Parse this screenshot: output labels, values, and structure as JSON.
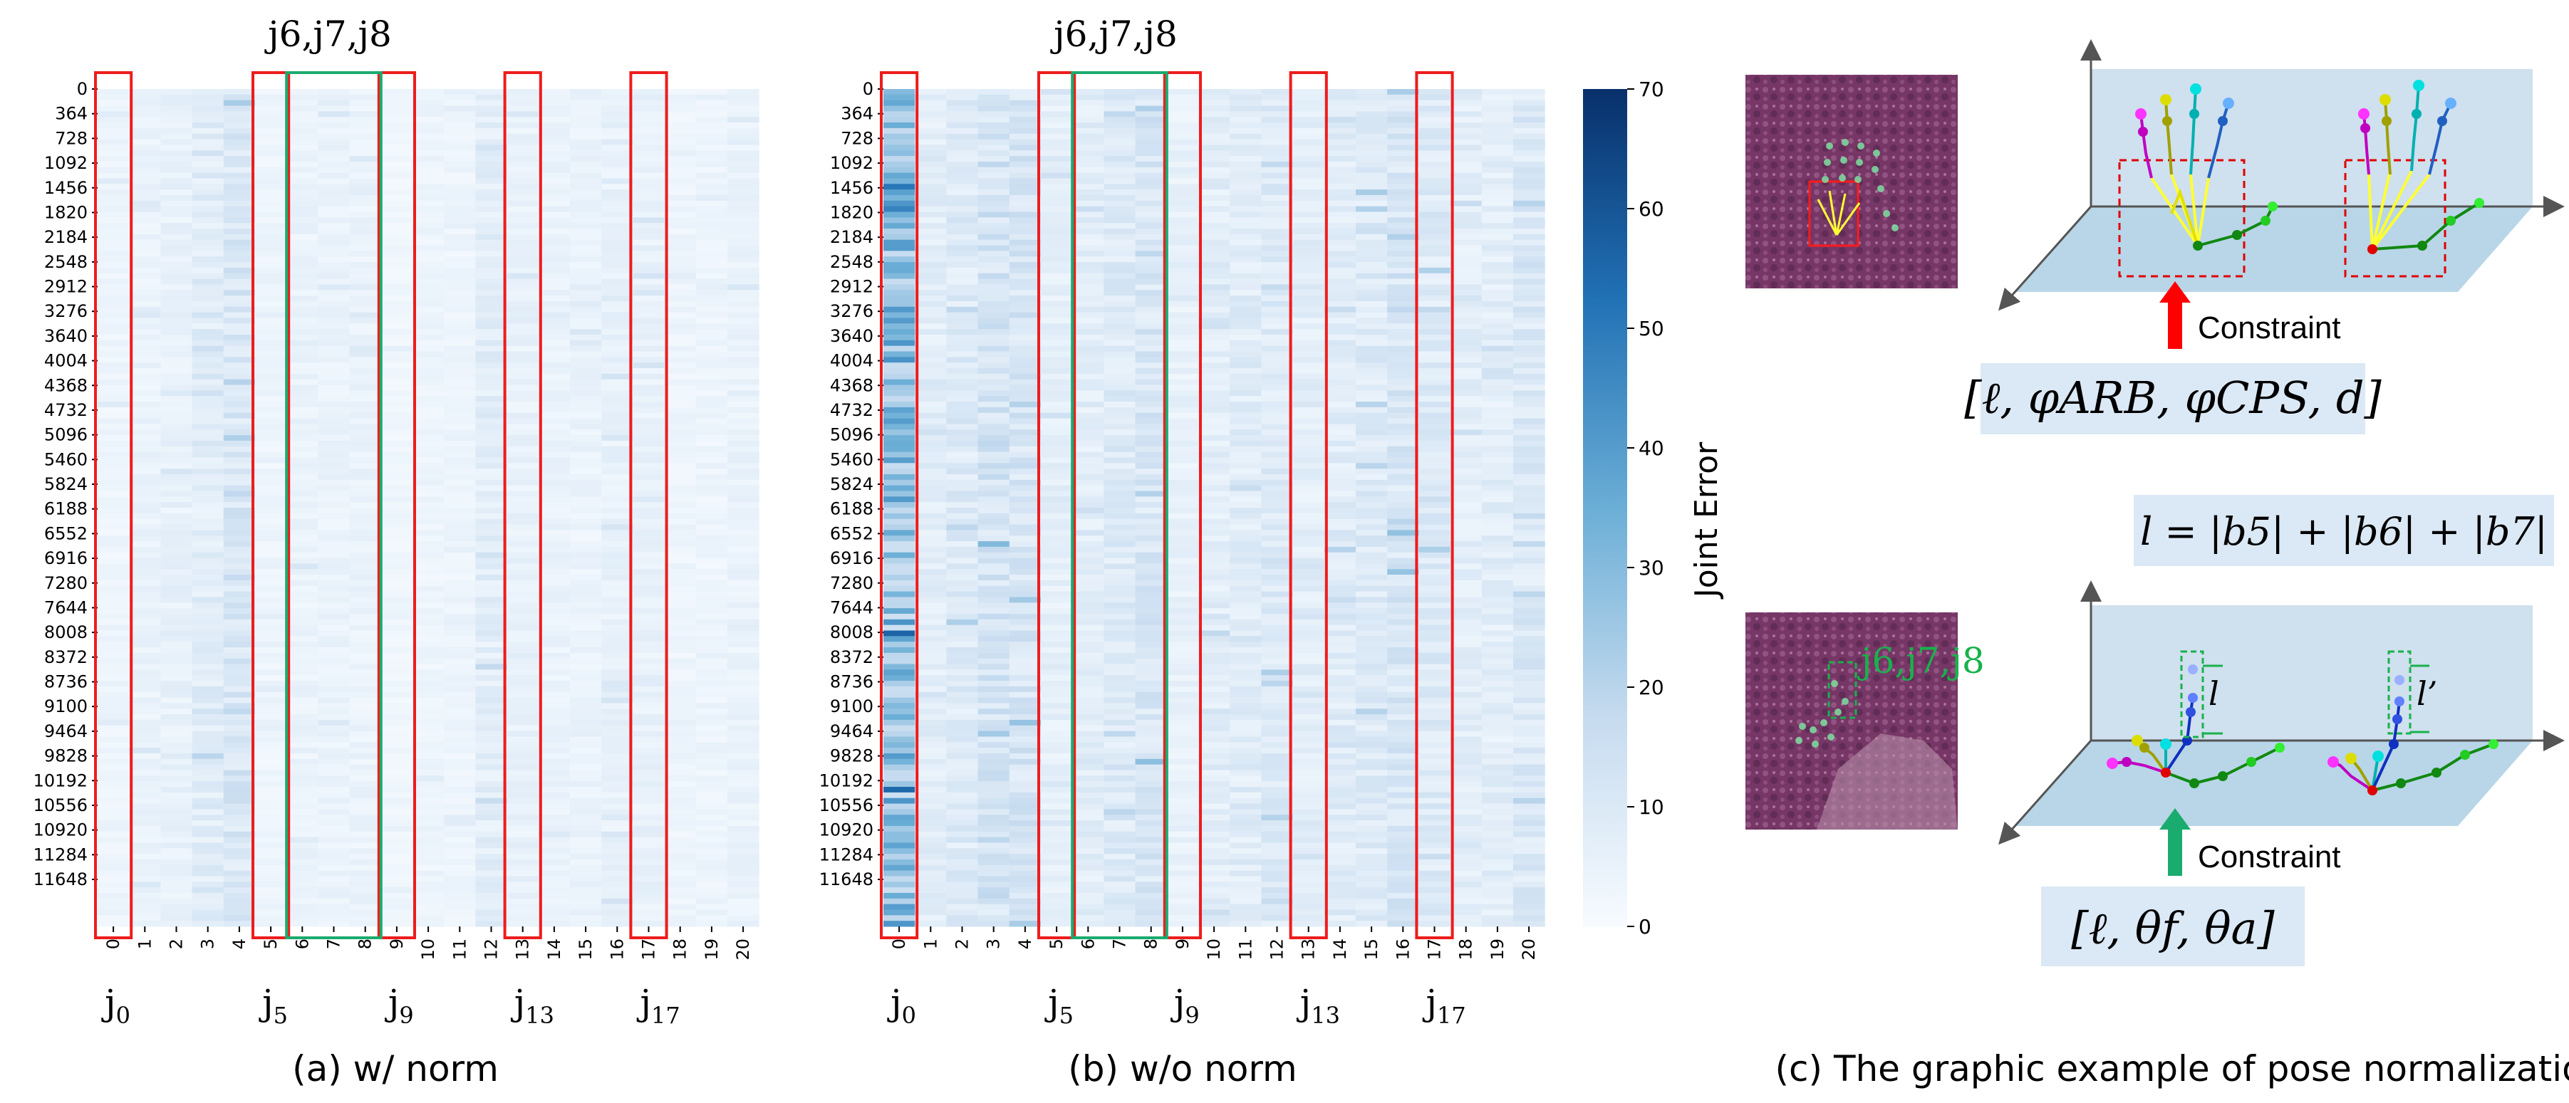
{
  "chart_data": [
    {
      "type": "heatmap",
      "title": "",
      "caption": "(a) w/ norm",
      "xlabel": "",
      "ylabel": "",
      "x_tick_labels": [
        "0",
        "1",
        "2",
        "3",
        "4",
        "5",
        "6",
        "7",
        "8",
        "9",
        "10",
        "11",
        "12",
        "13",
        "14",
        "15",
        "16",
        "17",
        "18",
        "19",
        "20"
      ],
      "y_tick_labels": [
        "0",
        "364",
        "728",
        "1092",
        "1456",
        "1820",
        "2184",
        "2548",
        "2912",
        "3276",
        "3640",
        "4004",
        "4368",
        "4732",
        "5096",
        "5460",
        "5824",
        "6188",
        "6552",
        "6916",
        "7280",
        "7644",
        "8008",
        "8372",
        "8736",
        "9100",
        "9464",
        "9828",
        "10192",
        "10556",
        "10920",
        "11284",
        "11648"
      ],
      "top_label": "j6,j7,j8",
      "joint_labels": [
        {
          "main": "j",
          "sub": "0"
        },
        {
          "main": "j",
          "sub": "5"
        },
        {
          "main": "j",
          "sub": "9"
        },
        {
          "main": "j",
          "sub": "13"
        },
        {
          "main": "j",
          "sub": "17"
        }
      ],
      "column_mean_error": [
        4,
        5,
        6,
        9,
        12,
        4,
        5,
        5,
        5,
        3,
        4,
        4,
        8,
        6,
        5,
        5,
        6,
        6,
        4,
        4,
        5
      ],
      "highlighted_columns_red": [
        0,
        5,
        9,
        13,
        17
      ],
      "highlighted_columns_green": [
        6,
        7,
        8
      ]
    },
    {
      "type": "heatmap",
      "title": "",
      "caption": "(b) w/o norm",
      "xlabel": "",
      "ylabel": "",
      "x_tick_labels": [
        "0",
        "1",
        "2",
        "3",
        "4",
        "5",
        "6",
        "7",
        "8",
        "9",
        "10",
        "11",
        "12",
        "13",
        "14",
        "15",
        "16",
        "17",
        "18",
        "19",
        "20"
      ],
      "y_tick_labels": [
        "0",
        "364",
        "728",
        "1092",
        "1456",
        "1820",
        "2184",
        "2548",
        "2912",
        "3276",
        "3640",
        "4004",
        "4368",
        "4732",
        "5096",
        "5460",
        "5824",
        "6188",
        "6552",
        "6916",
        "7280",
        "7644",
        "8008",
        "8372",
        "8736",
        "9100",
        "9464",
        "9828",
        "10192",
        "10556",
        "10920",
        "11284",
        "11648"
      ],
      "top_label": "j6,j7,j8",
      "joint_labels": [
        {
          "main": "j",
          "sub": "0"
        },
        {
          "main": "j",
          "sub": "5"
        },
        {
          "main": "j",
          "sub": "9"
        },
        {
          "main": "j",
          "sub": "13"
        },
        {
          "main": "j",
          "sub": "17"
        }
      ],
      "column_mean_error": [
        32,
        8,
        10,
        14,
        13,
        7,
        8,
        10,
        12,
        6,
        8,
        9,
        10,
        8,
        9,
        10,
        12,
        10,
        8,
        8,
        11
      ],
      "highlighted_columns_red": [
        0,
        5,
        9,
        13,
        17
      ],
      "highlighted_columns_green": [
        6,
        7,
        8
      ]
    }
  ],
  "colorbar": {
    "label": "Joint Error",
    "ticks": [
      "0",
      "10",
      "20",
      "30",
      "40",
      "50",
      "60",
      "70"
    ],
    "min": 0,
    "max": 70,
    "color_low": "#f7fbff",
    "color_high": "#08306b"
  },
  "panel_c": {
    "caption": "(c) The graphic example of pose normalization",
    "top_constraint": "Constraint",
    "top_formula": "[ℓ, φARB, φCPS, d]",
    "length_formula": "l = |b5| + |b6| + |b7|",
    "bottom_constraint": "Constraint",
    "bottom_formula": "[ℓ, θf, θa]",
    "bottom_photo_label": "j6,j7,j8",
    "l_label": "l",
    "l_prime_label": "l’",
    "colors": {
      "box_fill": "#dbe8f5",
      "plane_fill": "#bcd8ea",
      "arrow_red": "#ff0000",
      "arrow_green": "#1aab6e",
      "palm": "#ffff33",
      "dash_red": "#e00000",
      "dash_green": "#18b24b"
    }
  },
  "colors": {
    "highlight_red": "#ee1c1c",
    "highlight_green": "#1aab6e"
  }
}
